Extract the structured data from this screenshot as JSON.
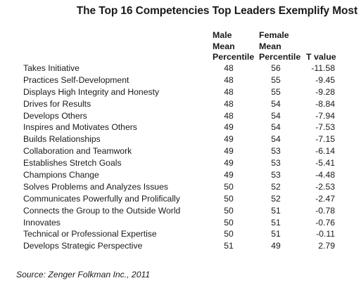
{
  "title": "The Top 16 Competencies Top Leaders Exemplify Most",
  "headers": {
    "male": [
      "Male",
      "Mean",
      "Percentile"
    ],
    "female": [
      "Female",
      "Mean",
      "Percentile"
    ],
    "t_value": "T value"
  },
  "rows": [
    {
      "name": "Takes Initiative",
      "male": "48",
      "female": "56",
      "t": "-11.58"
    },
    {
      "name": "Practices Self-Development",
      "male": "48",
      "female": "55",
      "t": "-9.45"
    },
    {
      "name": "Displays High Integrity and Honesty",
      "male": "48",
      "female": "55",
      "t": "-9.28"
    },
    {
      "name": "Drives for Results",
      "male": "48",
      "female": "54",
      "t": "-8.84"
    },
    {
      "name": "Develops Others",
      "male": "48",
      "female": "54",
      "t": "-7.94"
    },
    {
      "name": "Inspires and Motivates Others",
      "male": "49",
      "female": "54",
      "t": "-7.53"
    },
    {
      "name": "Builds Relationships",
      "male": "49",
      "female": "54",
      "t": "-7.15"
    },
    {
      "name": "Collaboration and Teamwork",
      "male": "49",
      "female": "53",
      "t": "-6.14"
    },
    {
      "name": "Establishes Stretch Goals",
      "male": "49",
      "female": "53",
      "t": "-5.41"
    },
    {
      "name": "Champions Change",
      "male": "49",
      "female": "53",
      "t": "-4.48"
    },
    {
      "name": "Solves Problems and Analyzes Issues",
      "male": "50",
      "female": "52",
      "t": "-2.53"
    },
    {
      "name": "Communicates Powerfully and Prolifically",
      "male": "50",
      "female": "52",
      "t": "-2.47"
    },
    {
      "name": "Connects the Group to the Outside World",
      "male": "50",
      "female": "51",
      "t": "-0.78"
    },
    {
      "name": "Innovates",
      "male": "50",
      "female": "51",
      "t": "-0.76"
    },
    {
      "name": "Technical or Professional Expertise",
      "male": "50",
      "female": "51",
      "t": "-0.11"
    },
    {
      "name": "Develops Strategic Perspective",
      "male": "51",
      "female": "49",
      "t": "2.79"
    }
  ],
  "source": "Source: Zenger Folkman Inc., 2011"
}
